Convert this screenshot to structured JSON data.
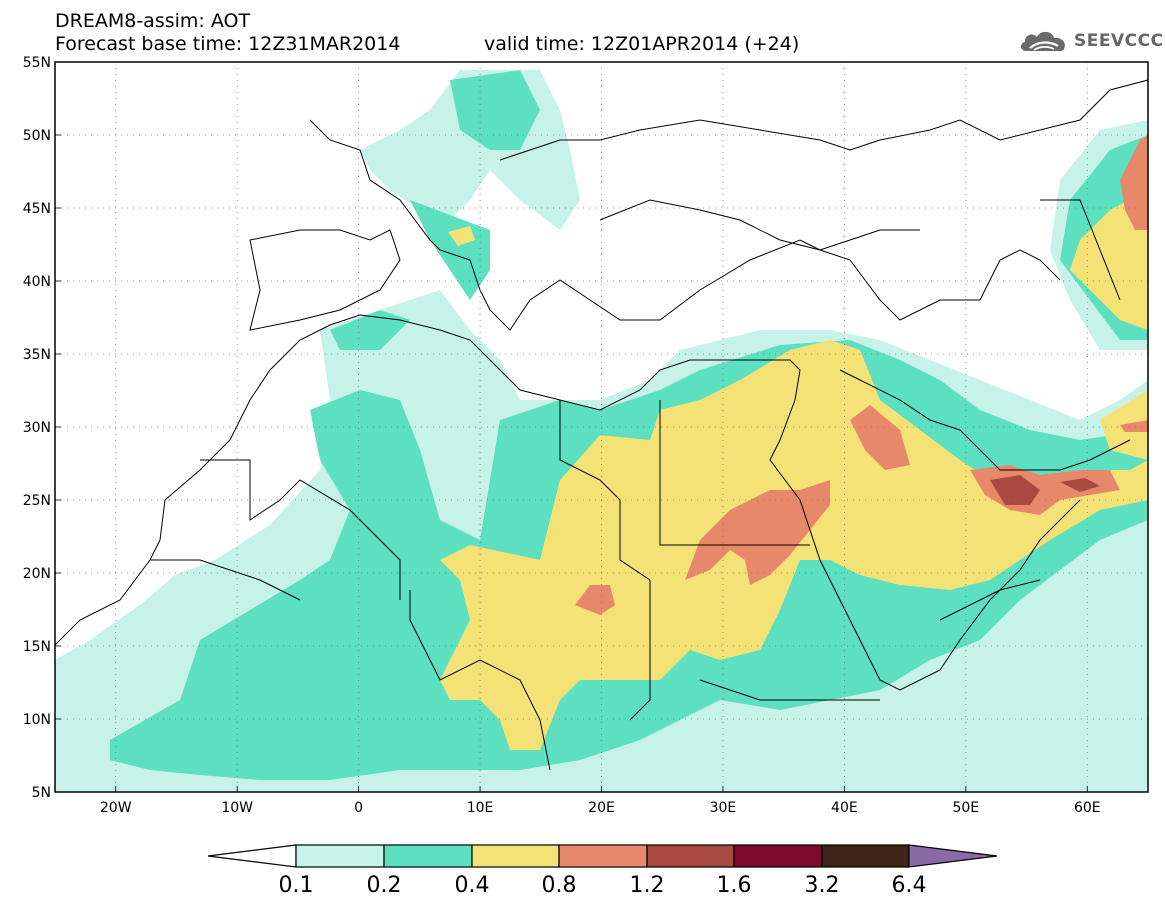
{
  "title": {
    "line1": "DREAM8-assim: AOT",
    "line2": "Forecast base time: 12Z31MAR2014",
    "valid": "valid time: 12Z01APR2014 (+24)"
  },
  "logo": {
    "text": "SEEVCCC",
    "icon": "cloud-icon",
    "color": "#666666"
  },
  "map": {
    "lon_range": [
      -25,
      65
    ],
    "lat_range": [
      5,
      55
    ],
    "lat_ticks": [
      {
        "value": 55,
        "label": "55N"
      },
      {
        "value": 50,
        "label": "50N"
      },
      {
        "value": 45,
        "label": "45N"
      },
      {
        "value": 40,
        "label": "40N"
      },
      {
        "value": 35,
        "label": "35N"
      },
      {
        "value": 30,
        "label": "30N"
      },
      {
        "value": 25,
        "label": "25N"
      },
      {
        "value": 20,
        "label": "20N"
      },
      {
        "value": 15,
        "label": "15N"
      },
      {
        "value": 10,
        "label": "10N"
      },
      {
        "value": 5,
        "label": "5N"
      }
    ],
    "lon_ticks": [
      {
        "value": -20,
        "label": "20W"
      },
      {
        "value": -10,
        "label": "10W"
      },
      {
        "value": 0,
        "label": "0"
      },
      {
        "value": 10,
        "label": "10E"
      },
      {
        "value": 20,
        "label": "20E"
      },
      {
        "value": 30,
        "label": "30E"
      },
      {
        "value": 40,
        "label": "40E"
      },
      {
        "value": 50,
        "label": "50E"
      },
      {
        "value": 60,
        "label": "60E"
      }
    ],
    "gridlines": "dotted"
  },
  "colorbar": {
    "levels": [
      "0.1",
      "0.2",
      "0.4",
      "0.8",
      "1.2",
      "1.6",
      "3.2",
      "6.4"
    ],
    "colors": [
      "#ffffff",
      "#c6f2ea",
      "#5ce0bf",
      "#f5e277",
      "#e8886b",
      "#a84a3f",
      "#7d0a2a",
      "#3d2517",
      "#8a6aa6"
    ]
  }
}
